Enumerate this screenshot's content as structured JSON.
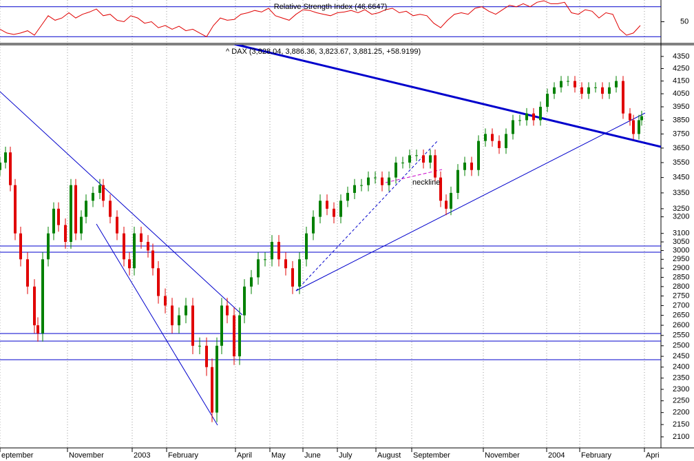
{
  "chart_data": [
    {
      "type": "line",
      "title": "Relative Strength Index (46.6647)",
      "x": [
        0,
        5,
        10,
        15,
        20,
        25,
        30,
        35,
        40,
        45,
        50,
        55,
        60,
        65,
        70,
        75,
        80,
        85,
        90,
        95,
        100,
        105,
        110,
        115,
        120,
        125,
        130,
        135,
        140,
        145,
        150,
        155,
        160,
        165,
        170,
        175,
        180,
        185,
        190,
        195,
        200,
        205,
        210,
        215,
        220,
        225,
        230,
        235,
        240,
        245,
        250,
        255,
        260,
        265,
        270,
        275,
        280,
        285,
        290,
        295,
        300,
        305,
        310,
        315,
        320,
        325,
        330,
        335,
        340,
        345,
        350,
        355,
        360,
        365,
        370,
        375,
        380,
        385,
        390,
        395,
        400,
        405,
        410,
        415,
        420,
        425,
        430,
        435,
        440,
        445,
        450,
        455,
        460,
        465
      ],
      "series": [
        {
          "color": "#e00000",
          "values": [
            40,
            35,
            33,
            35,
            38,
            32,
            45,
            58,
            52,
            55,
            62,
            55,
            60,
            63,
            67,
            58,
            60,
            52,
            50,
            58,
            55,
            48,
            50,
            42,
            45,
            40,
            44,
            38,
            40,
            35,
            30,
            45,
            55,
            52,
            53,
            60,
            62,
            65,
            63,
            68,
            58,
            55,
            52,
            60,
            66,
            65,
            62,
            60,
            58,
            62,
            63,
            65,
            62,
            66,
            60,
            62,
            66,
            68,
            62,
            64,
            58,
            60,
            58,
            48,
            42,
            52,
            60,
            62,
            60,
            68,
            70,
            64,
            60,
            66,
            72,
            70,
            74,
            70,
            76,
            78,
            74,
            74,
            76,
            62,
            60,
            66,
            64,
            55,
            62,
            60,
            40,
            32,
            35,
            45
          ]
        }
      ],
      "xlim": [
        0,
        480
      ],
      "ylim": [
        22,
        79
      ],
      "yticks": [
        50
      ],
      "reference_lines": [
        30,
        70
      ],
      "reference_color": "#0000cc"
    },
    {
      "type": "candlestick",
      "title": "^ DAX (3,828.04, 3,886.36, 3,823.67, 3,881.25, +58.9199)",
      "x": [
        0,
        4,
        7.5,
        11,
        15,
        20,
        25,
        27.5,
        31,
        35,
        39,
        42.5,
        47.5,
        51.5,
        55,
        59,
        62.5,
        67.5,
        72.5,
        75,
        80,
        85,
        90,
        94,
        97.5,
        102.5,
        107.5,
        111,
        115,
        120,
        125,
        130,
        135,
        140,
        145,
        150,
        154,
        157.5,
        161,
        165,
        170,
        174,
        177.5,
        182.5,
        187.5,
        192.5,
        197.5,
        202.5,
        207.5,
        212.5,
        217.5,
        222.5,
        227.5,
        232.5,
        237.5,
        242.5,
        247.5,
        252.5,
        257.5,
        262.5,
        267.5,
        272.5,
        277.5,
        282.5,
        287.5,
        292.5,
        297.5,
        302.5,
        307.5,
        312.5,
        316,
        320,
        324,
        327.5,
        332.5,
        337.5,
        342.5,
        347.5,
        352.5,
        357.5,
        362.5,
        367.5,
        372.5,
        377.5,
        382.5,
        387.5,
        392.5,
        397.5,
        402.5,
        407.5,
        412.5,
        417.5,
        422.5,
        427.5,
        432.5,
        437.5,
        442.5,
        447.5,
        452.5,
        457.5,
        460,
        464,
        466
      ],
      "open": [
        3500,
        3550,
        3620,
        3400,
        3100,
        2950,
        2800,
        2600,
        2560,
        2950,
        3100,
        3250,
        3150,
        3050,
        3400,
        3100,
        3200,
        3300,
        3350,
        3400,
        3300,
        3200,
        3100,
        2950,
        2900,
        3100,
        3050,
        3000,
        2900,
        2750,
        2700,
        2600,
        2650,
        2700,
        2500,
        2500,
        2400,
        2200,
        2500,
        2700,
        2650,
        2450,
        2650,
        2800,
        2850,
        2950,
        2950,
        3050,
        2950,
        2900,
        2800,
        2950,
        3100,
        3200,
        3300,
        3250,
        3200,
        3300,
        3350,
        3400,
        3400,
        3450,
        3450,
        3400,
        3450,
        3550,
        3550,
        3600,
        3600,
        3550,
        3600,
        3450,
        3300,
        3250,
        3350,
        3500,
        3550,
        3500,
        3700,
        3750,
        3700,
        3650,
        3750,
        3850,
        3850,
        3900,
        3850,
        3950,
        4050,
        4100,
        4150,
        4150,
        4100,
        4050,
        4100,
        4100,
        4050,
        4100,
        4150,
        3900,
        3850,
        3750,
        3850
      ],
      "high": [
        3590,
        3660,
        3660,
        3440,
        3140,
        2990,
        2840,
        2640,
        2990,
        3140,
        3290,
        3290,
        3190,
        3440,
        3440,
        3240,
        3340,
        3390,
        3440,
        3440,
        3340,
        3240,
        3140,
        2990,
        3140,
        3140,
        3090,
        3040,
        2940,
        2790,
        2740,
        2690,
        2740,
        2740,
        2540,
        2540,
        2440,
        2540,
        2740,
        2740,
        2690,
        2690,
        2840,
        2890,
        2990,
        2990,
        3090,
        3090,
        2990,
        2940,
        2990,
        3140,
        3240,
        3340,
        3340,
        3290,
        3340,
        3390,
        3440,
        3440,
        3490,
        3490,
        3490,
        3490,
        3590,
        3590,
        3640,
        3640,
        3640,
        3640,
        3640,
        3490,
        3340,
        3390,
        3540,
        3590,
        3590,
        3740,
        3790,
        3790,
        3740,
        3790,
        3890,
        3890,
        3940,
        3940,
        3990,
        4090,
        4140,
        4190,
        4190,
        4190,
        4140,
        4140,
        4140,
        4140,
        4140,
        4190,
        4190,
        3940,
        3890,
        3890,
        3920
      ],
      "low": [
        3460,
        3510,
        3360,
        3060,
        2910,
        2760,
        2560,
        2520,
        2520,
        2910,
        3060,
        3110,
        3010,
        3010,
        3060,
        3060,
        3160,
        3260,
        3310,
        3260,
        3160,
        3060,
        2910,
        2860,
        2860,
        3010,
        2960,
        2860,
        2710,
        2660,
        2560,
        2560,
        2610,
        2460,
        2460,
        2360,
        2160,
        2160,
        2460,
        2610,
        2410,
        2410,
        2610,
        2760,
        2810,
        2910,
        2910,
        2910,
        2860,
        2760,
        2760,
        2910,
        3060,
        3160,
        3210,
        3160,
        3160,
        3260,
        3310,
        3360,
        3360,
        3410,
        3360,
        3360,
        3410,
        3510,
        3510,
        3560,
        3510,
        3510,
        3410,
        3260,
        3210,
        3210,
        3310,
        3460,
        3460,
        3460,
        3660,
        3660,
        3610,
        3610,
        3710,
        3810,
        3810,
        3810,
        3810,
        3910,
        4010,
        4060,
        4110,
        4060,
        4010,
        4010,
        4060,
        4010,
        4010,
        4060,
        3860,
        3810,
        3710,
        3710,
        3810
      ],
      "close": [
        3550,
        3620,
        3400,
        3100,
        2950,
        2800,
        2600,
        2560,
        2950,
        3100,
        3250,
        3150,
        3050,
        3400,
        3100,
        3200,
        3300,
        3350,
        3400,
        3300,
        3200,
        3100,
        2950,
        2900,
        3100,
        3050,
        3000,
        2900,
        2750,
        2700,
        2600,
        2650,
        2700,
        2500,
        2500,
        2400,
        2200,
        2500,
        2700,
        2650,
        2450,
        2650,
        2800,
        2850,
        2950,
        2950,
        3050,
        2950,
        2900,
        2800,
        2950,
        3100,
        3200,
        3300,
        3250,
        3200,
        3300,
        3350,
        3400,
        3400,
        3450,
        3450,
        3400,
        3450,
        3550,
        3550,
        3600,
        3600,
        3550,
        3600,
        3450,
        3300,
        3250,
        3350,
        3500,
        3550,
        3500,
        3700,
        3750,
        3700,
        3650,
        3750,
        3850,
        3850,
        3900,
        3850,
        3950,
        4050,
        4100,
        4150,
        4150,
        4100,
        4050,
        4100,
        4100,
        4050,
        4100,
        4150,
        3900,
        3850,
        3750,
        3850,
        3880
      ],
      "up_color": "#008000",
      "down_color": "#e00000",
      "xlim": [
        0,
        480
      ],
      "ylim": [
        2056,
        4448
      ],
      "log_scale": true,
      "yticks": [
        2100,
        2150,
        2200,
        2250,
        2300,
        2350,
        2400,
        2450,
        2500,
        2550,
        2600,
        2650,
        2700,
        2750,
        2800,
        2850,
        2900,
        2950,
        3000,
        3050,
        3100,
        3200,
        3250,
        3350,
        3450,
        3550,
        3650,
        3750,
        3850,
        3950,
        4050,
        4150,
        4250,
        4350
      ],
      "xticks": [
        {
          "value": 0,
          "label": "eptember"
        },
        {
          "value": 49,
          "label": "November"
        },
        {
          "value": 96,
          "label": "2003"
        },
        {
          "value": 121,
          "label": "February"
        },
        {
          "value": 171,
          "label": "April"
        },
        {
          "value": 196,
          "label": "May"
        },
        {
          "value": 220,
          "label": "June"
        },
        {
          "value": 245,
          "label": "July"
        },
        {
          "value": 273,
          "label": "August"
        },
        {
          "value": 299,
          "label": "September"
        },
        {
          "value": 351,
          "label": "November"
        },
        {
          "value": 397,
          "label": "2004"
        },
        {
          "value": 421,
          "label": "February"
        },
        {
          "value": 468,
          "label": "Apri"
        }
      ],
      "grid": true,
      "annotation": "neckline",
      "annotation_color": "#cc00cc"
    }
  ]
}
